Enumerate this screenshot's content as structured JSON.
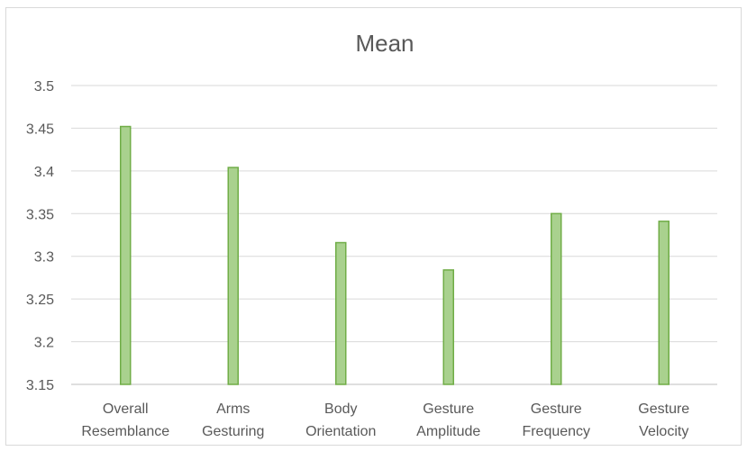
{
  "chart_data": {
    "type": "bar",
    "title": "Mean",
    "categories": [
      [
        "Overall",
        "Resemblance"
      ],
      [
        "Arms",
        "Gesturing"
      ],
      [
        "Body",
        "Orientation"
      ],
      [
        "Gesture",
        "Amplitude"
      ],
      [
        "Gesture",
        "Frequency"
      ],
      [
        "Gesture",
        "Velocity"
      ]
    ],
    "values": [
      3.452,
      3.404,
      3.316,
      3.284,
      3.35,
      3.341
    ],
    "ylim": [
      3.15,
      3.5
    ],
    "yticks": [
      "3.5",
      "3.45",
      "3.4",
      "3.35",
      "3.3",
      "3.25",
      "3.2",
      "3.15"
    ],
    "xlabel": "",
    "ylabel": "",
    "grid": true,
    "colors": {
      "bar_fill": "#a9d18e",
      "bar_stroke": "#70ad47",
      "grid": "#d9d9d9",
      "text": "#595959"
    }
  }
}
